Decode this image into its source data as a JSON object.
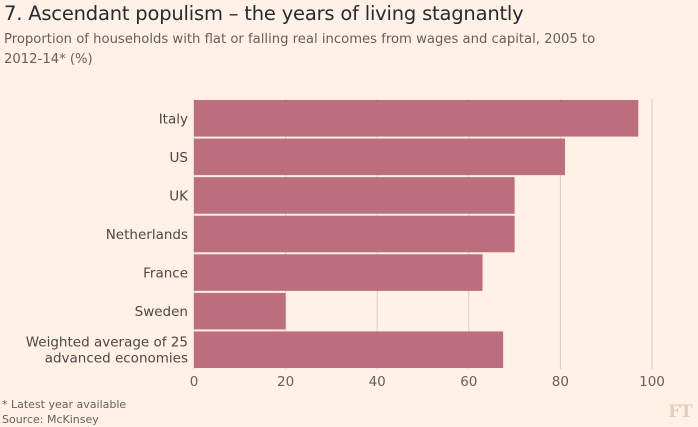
{
  "header": {
    "title": "7. Ascendant populism – the years of living stagnantly",
    "subtitle": "Proportion of households with flat or falling real incomes from wages and capital, 2005 to 2012-14* (%)"
  },
  "footer": {
    "footnote": "* Latest year available",
    "source": "Source: McKinsey",
    "logo": "FT"
  },
  "colors": {
    "bar": "#bc6d7e",
    "background": "#fff1e5"
  },
  "chart_data": {
    "type": "bar",
    "orientation": "horizontal",
    "title": "7. Ascendant populism – the years of living stagnantly",
    "subtitle": "Proportion of households with flat or falling real incomes from wages and capital, 2005 to 2012-14* (%)",
    "categories": [
      [
        "Italy"
      ],
      [
        "US"
      ],
      [
        "UK"
      ],
      [
        "Netherlands"
      ],
      [
        "France"
      ],
      [
        "Sweden"
      ],
      [
        "Weighted average of 25",
        "advanced economies"
      ]
    ],
    "values": [
      97,
      81,
      70,
      70,
      63,
      20,
      67.5
    ],
    "xlim": [
      0,
      100
    ],
    "xticks": [
      0,
      20,
      40,
      60,
      80,
      100
    ],
    "xlabel": "",
    "ylabel": "",
    "grid": true
  }
}
